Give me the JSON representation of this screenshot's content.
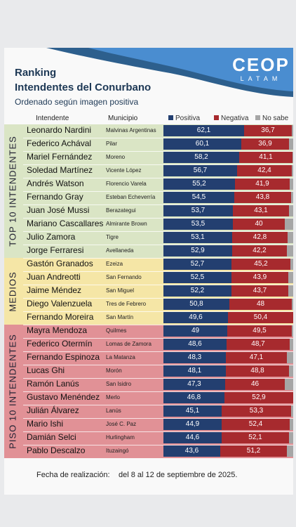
{
  "header": {
    "title_line1": "Ranking",
    "title_line2": "Intendentes del Conurbano",
    "subtitle": "Ordenado según imagen positiva",
    "logo_main": "CEOP",
    "logo_sub": "LATAM"
  },
  "columns": {
    "intendente": "Intendente",
    "municipio": "Municipio"
  },
  "legend": [
    {
      "label": "Positiva",
      "color": "#233f70"
    },
    {
      "label": "Negativa",
      "color": "#a72a2e"
    },
    {
      "label": "No sabe",
      "color": "#a6a6a6"
    }
  ],
  "groups": [
    {
      "label": "TOP 10 INTENDENTES",
      "color": "#dae5c5"
    },
    {
      "label": "MEDIOS",
      "color": "#f5e6a6"
    },
    {
      "label": "PISO 10 INTENDENTES",
      "color": "#e19196"
    }
  ],
  "footer": {
    "label": "Fecha de realización:",
    "value": "del 8 al 12 de septiembre de 2025."
  },
  "chart_data": {
    "type": "bar",
    "stacked": true,
    "orientation": "horizontal",
    "title": "Intendentes del Conurbano",
    "subtitle": "Ordenado según imagen positiva",
    "series": [
      {
        "name": "Positiva",
        "values": [
          62.1,
          60.1,
          58.2,
          56.7,
          55.2,
          54.5,
          53.7,
          53.5,
          53.1,
          52.9,
          52.7,
          52.5,
          52.2,
          50.8,
          49.6,
          49,
          48.6,
          48.3,
          48.1,
          47.3,
          46.8,
          45.1,
          44.9,
          44.6,
          43.6
        ]
      },
      {
        "name": "Negativa",
        "values": [
          36.7,
          36.9,
          41.1,
          42.4,
          41.9,
          43.8,
          43.1,
          40,
          42.8,
          42.2,
          45.2,
          43.9,
          43.7,
          48,
          50.4,
          49.5,
          48.7,
          47.1,
          48.8,
          46,
          52.9,
          53.3,
          52.4,
          52.1,
          51.2
        ]
      }
    ],
    "rows": [
      {
        "group": 0,
        "intendente": "Leonardo Nardini",
        "municipio": "Malvinas Argentinas",
        "positiva": "62,1",
        "negativa": "36,7"
      },
      {
        "group": 0,
        "intendente": "Federico Achával",
        "municipio": "Pilar",
        "positiva": "60,1",
        "negativa": "36,9"
      },
      {
        "group": 0,
        "intendente": "Mariel Fernández",
        "municipio": "Moreno",
        "positiva": "58,2",
        "negativa": "41,1"
      },
      {
        "group": 0,
        "intendente": "Soledad Martínez",
        "municipio": "Vicente López",
        "positiva": "56,7",
        "negativa": "42,4"
      },
      {
        "group": 0,
        "intendente": "Andrés Watson",
        "municipio": "Florencio Varela",
        "positiva": "55,2",
        "negativa": "41,9"
      },
      {
        "group": 0,
        "intendente": "Fernando Gray",
        "municipio": "Esteban Echeverría",
        "positiva": "54,5",
        "negativa": "43,8"
      },
      {
        "group": 0,
        "intendente": "Juan José Mussi",
        "municipio": "Berazategui",
        "positiva": "53,7",
        "negativa": "43,1"
      },
      {
        "group": 0,
        "intendente": "Mariano Cascallares",
        "municipio": "Almirante Brown",
        "positiva": "53,5",
        "negativa": "40"
      },
      {
        "group": 0,
        "intendente": "Julio Zamora",
        "municipio": "Tigre",
        "positiva": "53,1",
        "negativa": "42,8"
      },
      {
        "group": 0,
        "intendente": "Jorge Ferraresi",
        "municipio": "Avellaneda",
        "positiva": "52,9",
        "negativa": "42,2"
      },
      {
        "group": 1,
        "intendente": "Gastón Granados",
        "municipio": "Ezeiza",
        "positiva": "52,7",
        "negativa": "45,2"
      },
      {
        "group": 1,
        "intendente": "Juan Andreotti",
        "municipio": "San Fernando",
        "positiva": "52,5",
        "negativa": "43,9"
      },
      {
        "group": 1,
        "intendente": "Jaime Méndez",
        "municipio": "San Miguel",
        "positiva": "52,2",
        "negativa": "43,7"
      },
      {
        "group": 1,
        "intendente": "Diego Valenzuela",
        "municipio": "Tres de Febrero",
        "positiva": "50,8",
        "negativa": "48"
      },
      {
        "group": 1,
        "intendente": "Fernando Moreira",
        "municipio": "San Martín",
        "positiva": "49,6",
        "negativa": "50,4"
      },
      {
        "group": 2,
        "intendente": "Mayra Mendoza",
        "municipio": "Quilmes",
        "positiva": "49",
        "negativa": "49,5"
      },
      {
        "group": 2,
        "intendente": "Federico Otermín",
        "municipio": "Lomas de Zamora",
        "positiva": "48,6",
        "negativa": "48,7"
      },
      {
        "group": 2,
        "intendente": "Fernando Espinoza",
        "municipio": "La Matanza",
        "positiva": "48,3",
        "negativa": "47,1"
      },
      {
        "group": 2,
        "intendente": "Lucas Ghi",
        "municipio": "Morón",
        "positiva": "48,1",
        "negativa": "48,8"
      },
      {
        "group": 2,
        "intendente": "Ramón Lanús",
        "municipio": "San Isidro",
        "positiva": "47,3",
        "negativa": "46"
      },
      {
        "group": 2,
        "intendente": "Gustavo Menéndez",
        "municipio": "Merlo",
        "positiva": "46,8",
        "negativa": "52,9"
      },
      {
        "group": 2,
        "intendente": "Julián Álvarez",
        "municipio": "Lanús",
        "positiva": "45,1",
        "negativa": "53,3"
      },
      {
        "group": 2,
        "intendente": "Mario Ishi",
        "municipio": "José C. Paz",
        "positiva": "44,9",
        "negativa": "52,4"
      },
      {
        "group": 2,
        "intendente": "Damián Selci",
        "municipio": "Hurlingham",
        "positiva": "44,6",
        "negativa": "52,1"
      },
      {
        "group": 2,
        "intendente": "Pablo Descalzo",
        "municipio": "Ituzaingó",
        "positiva": "43,6",
        "negativa": "51,2"
      }
    ]
  }
}
